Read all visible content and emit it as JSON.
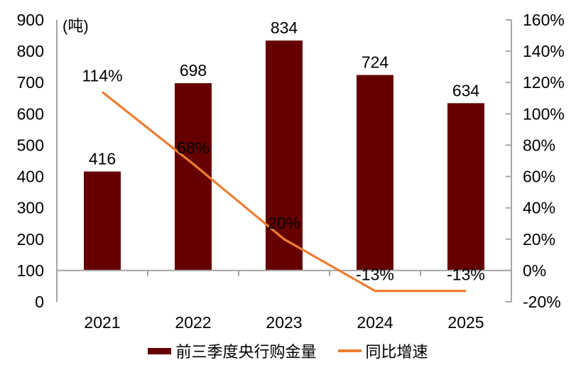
{
  "chart_data": {
    "type": "bar+line",
    "title": "",
    "categories": [
      "2021",
      "2022",
      "2023",
      "2024",
      "2025"
    ],
    "series": [
      {
        "name": "前三季度央行购金量",
        "type": "bar",
        "axis": "left",
        "color": "#660000",
        "values": [
          416,
          698,
          834,
          724,
          634
        ],
        "data_labels": [
          "416",
          "698",
          "834",
          "724",
          "634"
        ]
      },
      {
        "name": "同比增速",
        "type": "line",
        "axis": "right",
        "color": "#ED7D31",
        "values": [
          114,
          68,
          20,
          -13,
          -13
        ],
        "data_labels": [
          "114%",
          "68%",
          "20%",
          "-13%",
          "-13%"
        ]
      }
    ],
    "left_axis": {
      "title": "(吨)",
      "min": 0,
      "max": 900,
      "tick_values": [
        0,
        100,
        200,
        300,
        400,
        500,
        600,
        700,
        800,
        900
      ],
      "tick_labels": [
        "0",
        "100",
        "200",
        "300",
        "400",
        "500",
        "600",
        "700",
        "800",
        "900"
      ]
    },
    "right_axis": {
      "min": -20,
      "max": 160,
      "tick_values": [
        -20,
        0,
        20,
        40,
        60,
        80,
        100,
        120,
        140,
        160
      ],
      "tick_labels": [
        "-20%",
        "0%",
        "20%",
        "40%",
        "60%",
        "80%",
        "100%",
        "120%",
        "140%",
        "160%"
      ]
    },
    "baseline_right_axis_value": 0,
    "gridlines": false,
    "legend_position": "bottom",
    "axis_color": "#A6A6A6",
    "text_color": "#000000"
  }
}
